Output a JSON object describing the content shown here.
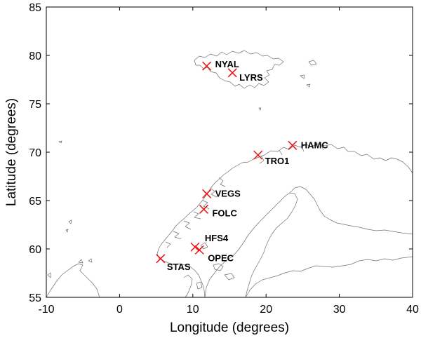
{
  "chart_data": {
    "type": "scatter",
    "title": "",
    "xlabel": "Longitude (degrees)",
    "ylabel": "Latitude (degrees)",
    "xlim": [
      -10,
      40
    ],
    "ylim": [
      55,
      85
    ],
    "xticks": [
      -10,
      0,
      10,
      20,
      30,
      40
    ],
    "yticks": [
      55,
      60,
      65,
      70,
      75,
      80,
      85
    ],
    "grid": false,
    "marker": "x",
    "marker_color": "#ee1111",
    "background_map": "coastlines of Scandinavia and Svalbard",
    "points": [
      {
        "label": "NYAL",
        "lon": 11.9,
        "lat": 78.9
      },
      {
        "label": "LYRS",
        "lon": 15.4,
        "lat": 78.2
      },
      {
        "label": "HAMC",
        "lon": 23.6,
        "lat": 70.7
      },
      {
        "label": "TRO1",
        "lon": 18.9,
        "lat": 69.7
      },
      {
        "label": "VEGS",
        "lon": 11.9,
        "lat": 65.7
      },
      {
        "label": "FOLC",
        "lon": 11.5,
        "lat": 64.1
      },
      {
        "label": "HFS4",
        "lon": 10.3,
        "lat": 60.2
      },
      {
        "label": "OPEC",
        "lon": 10.9,
        "lat": 59.9
      },
      {
        "label": "STAS",
        "lon": 5.6,
        "lat": 59.0
      }
    ]
  }
}
